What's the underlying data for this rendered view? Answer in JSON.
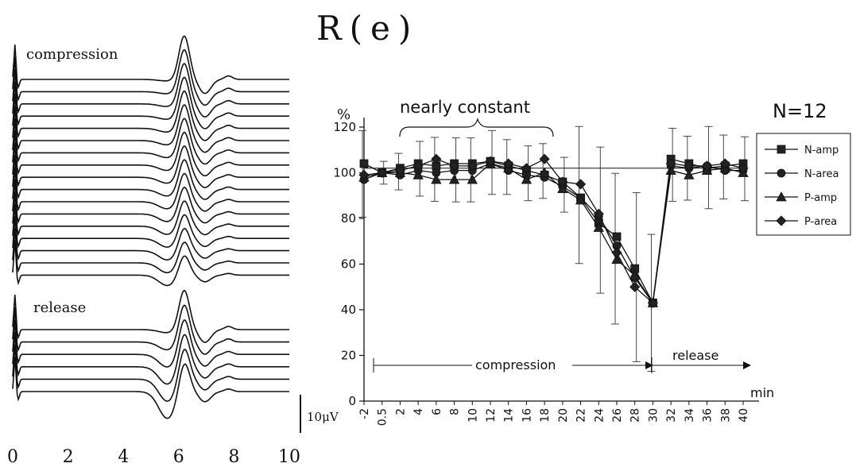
{
  "title": "R(e)",
  "waveforms": {
    "compression_label": "compression",
    "release_label": "release",
    "compression_trace_count": 17,
    "release_trace_count": 6,
    "x_ticks": [
      "0",
      "2",
      "4",
      "6",
      "8",
      "10"
    ],
    "scale_bar_label": "10μV"
  },
  "summary_chart": {
    "n_label": "N=12",
    "annotation": "nearly constant",
    "compression_label": "compression",
    "release_label": "release",
    "unit_label": "%",
    "x_unit": "min"
  },
  "chart_data": {
    "type": "line",
    "ylabel": "%",
    "xlabel": "min",
    "ylim": [
      0,
      120
    ],
    "yticks": [
      0,
      20,
      40,
      60,
      80,
      100,
      120
    ],
    "x": [
      "-2",
      "0.5",
      "2",
      "4",
      "6",
      "8",
      "10",
      "12",
      "14",
      "16",
      "18",
      "20",
      "22",
      "24",
      "26",
      "28",
      "30",
      "32",
      "34",
      "36",
      "38",
      "40"
    ],
    "reference_line": 102,
    "legend_position": "right",
    "series": [
      {
        "name": "N-amp",
        "marker": "square",
        "values": [
          104,
          100,
          102,
          104,
          103,
          104,
          104,
          105,
          103,
          101,
          99,
          96,
          89,
          78,
          72,
          58,
          43,
          106,
          104,
          102,
          103,
          104
        ]
      },
      {
        "name": "N-area",
        "marker": "circle",
        "values": [
          97,
          100,
          99,
          101,
          100,
          101,
          101,
          104,
          101,
          99,
          98,
          94,
          89,
          81,
          68,
          54,
          43,
          103,
          102,
          103,
          101,
          101
        ]
      },
      {
        "name": "P-amp",
        "marker": "triangle",
        "values": [
          98,
          100,
          100,
          99,
          97,
          97,
          97,
          104,
          102,
          97,
          100,
          93,
          88,
          76,
          62,
          55,
          43,
          101,
          99,
          101,
          102,
          100
        ]
      },
      {
        "name": "P-area",
        "marker": "diamond",
        "values": [
          99,
          100,
          101,
          103,
          106,
          103,
          103,
          105,
          104,
          102,
          106,
          96,
          95,
          82,
          65,
          50,
          43,
          104,
          103,
          103,
          104,
          102
        ]
      }
    ],
    "error_bars": [
      19,
      5,
      8,
      12,
      14,
      14,
      14,
      14,
      12,
      12,
      12,
      12,
      30,
      32,
      33,
      37,
      30,
      16,
      14,
      18,
      14,
      14
    ]
  }
}
